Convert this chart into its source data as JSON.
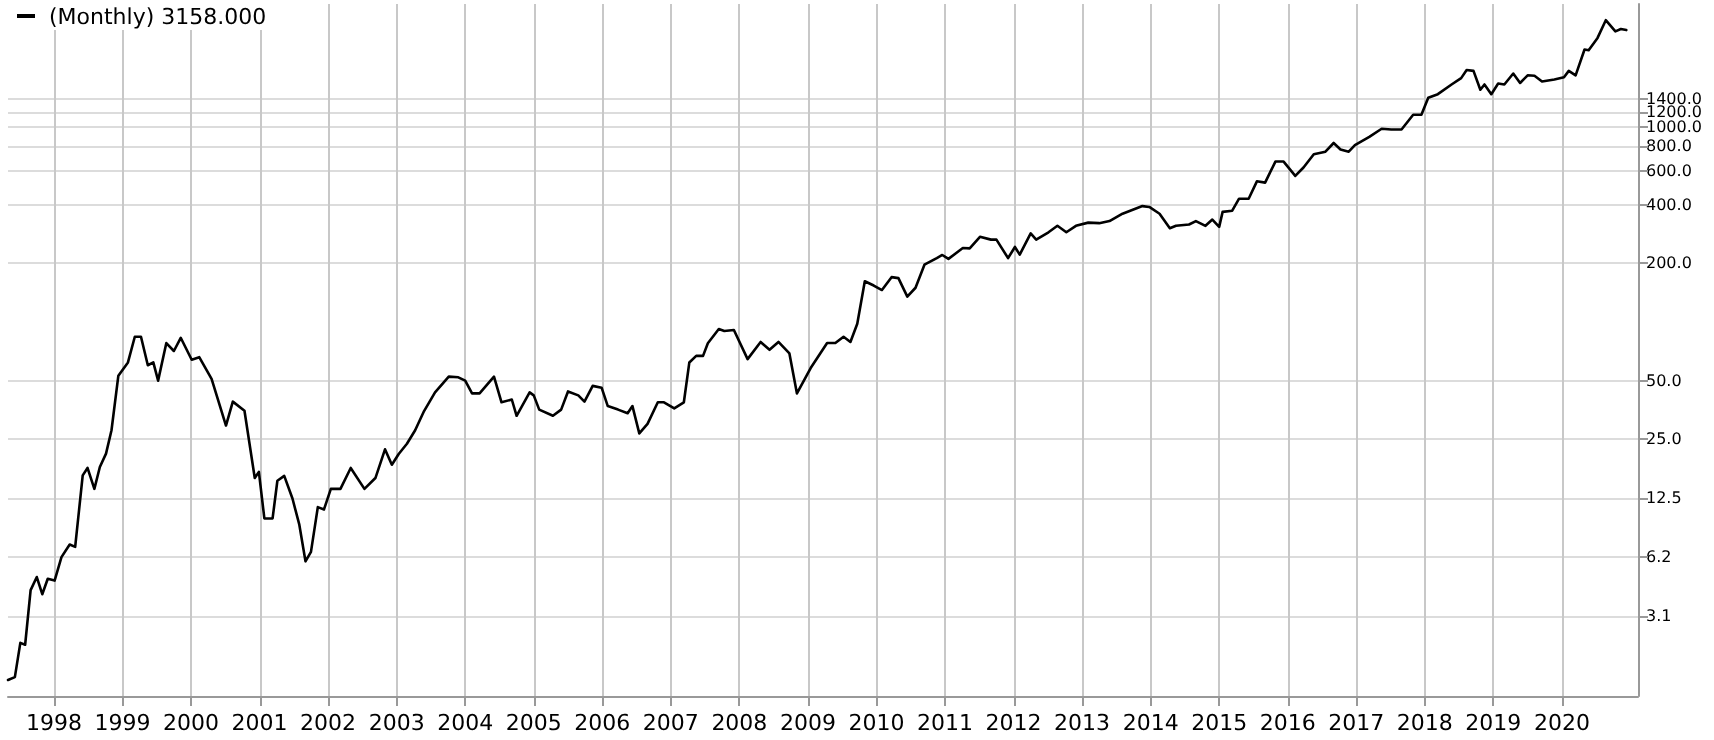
{
  "chart_data": {
    "type": "line",
    "annotations": [
      "(Monthly) 3158.000"
    ],
    "x": [
      1997.33,
      1997.43,
      1997.51,
      1997.58,
      1997.66,
      1997.75,
      1997.83,
      1997.91,
      1998.01,
      1998.11,
      1998.23,
      1998.31,
      1998.42,
      1998.49,
      1998.59,
      1998.67,
      1998.76,
      1998.84,
      1998.94,
      1999.08,
      1999.18,
      1999.27,
      1999.37,
      1999.45,
      1999.52,
      1999.64,
      1999.75,
      1999.85,
      2000.01,
      2000.12,
      2000.3,
      2000.51,
      2000.61,
      2000.78,
      2000.93,
      2000.99,
      2001.07,
      2001.19,
      2001.26,
      2001.36,
      2001.48,
      2001.58,
      2001.67,
      2001.75,
      2001.85,
      2001.94,
      2002.04,
      2002.18,
      2002.33,
      2002.53,
      2002.69,
      2002.83,
      2002.93,
      2003.03,
      2003.15,
      2003.27,
      2003.4,
      2003.56,
      2003.76,
      2003.9,
      2004.0,
      2004.1,
      2004.21,
      2004.42,
      2004.53,
      2004.68,
      2004.75,
      2004.94,
      2005.0,
      2005.08,
      2005.28,
      2005.4,
      2005.5,
      2005.65,
      2005.74,
      2005.86,
      2005.99,
      2006.08,
      2006.23,
      2006.37,
      2006.44,
      2006.54,
      2006.66,
      2006.81,
      2006.9,
      2007.05,
      2007.19,
      2007.27,
      2007.37,
      2007.47,
      2007.54,
      2007.7,
      2007.78,
      2007.92,
      2008.12,
      2008.31,
      2008.44,
      2008.57,
      2008.73,
      2008.84,
      2009.04,
      2009.28,
      2009.4,
      2009.52,
      2009.62,
      2009.72,
      2009.83,
      2009.96,
      2010.08,
      2010.22,
      2010.32,
      2010.45,
      2010.57,
      2010.7,
      2010.88,
      2010.96,
      2011.05,
      2011.26,
      2011.36,
      2011.51,
      2011.67,
      2011.75,
      2011.92,
      2012.02,
      2012.09,
      2012.25,
      2012.33,
      2012.51,
      2012.64,
      2012.77,
      2012.91,
      2013.09,
      2013.25,
      2013.4,
      2013.59,
      2013.88,
      2013.98,
      2014.13,
      2014.28,
      2014.37,
      2014.56,
      2014.66,
      2014.8,
      2014.9,
      2015.0,
      2015.05,
      2015.19,
      2015.29,
      2015.43,
      2015.55,
      2015.67,
      2015.82,
      2015.94,
      2016.11,
      2016.23,
      2016.38,
      2016.55,
      2016.67,
      2016.77,
      2016.89,
      2016.98,
      2017.19,
      2017.37,
      2017.51,
      2017.66,
      2017.83,
      2017.95,
      2018.05,
      2018.19,
      2018.39,
      2018.53,
      2018.61,
      2018.71,
      2018.81,
      2018.87,
      2018.97,
      2019.07,
      2019.16,
      2019.29,
      2019.39,
      2019.5,
      2019.6,
      2019.71,
      2019.89,
      2020.03,
      2020.1,
      2020.2,
      2020.33,
      2020.39,
      2020.52,
      2020.64,
      2020.78,
      2020.86,
      2020.94
    ],
    "series": [
      {
        "color": "#000000",
        "values": [
          1.45,
          1.5,
          2.25,
          2.2,
          4.2,
          4.9,
          4.0,
          4.8,
          4.7,
          6.2,
          7.2,
          7.0,
          16.3,
          17.8,
          13.9,
          18,
          21.1,
          27.8,
          53,
          62,
          84,
          84,
          60,
          62,
          50,
          78,
          71,
          83,
          64,
          66,
          51,
          29.4,
          39,
          35,
          15.8,
          17,
          9.8,
          9.8,
          15.3,
          16.2,
          12.4,
          9.1,
          5.9,
          6.6,
          11.2,
          10.9,
          13.9,
          13.9,
          17.8,
          13.9,
          15.8,
          22.2,
          18.5,
          21,
          23.7,
          27.8,
          34.9,
          43.5,
          52.4,
          52,
          50,
          43,
          43,
          52.4,
          38.7,
          40,
          33,
          43.5,
          42,
          35.5,
          33,
          35.5,
          44,
          42,
          39,
          47,
          46,
          37,
          35.5,
          34,
          37,
          26.8,
          30,
          38.7,
          38.7,
          36,
          38.7,
          62,
          67,
          67,
          77.8,
          92,
          90,
          91,
          64.5,
          79,
          72,
          79,
          69,
          43,
          58,
          78,
          78,
          84,
          79,
          98,
          162,
          154,
          146,
          170,
          168,
          135,
          150,
          197,
          213,
          221,
          211,
          240,
          239,
          274,
          265,
          265,
          213,
          243,
          222,
          285,
          265,
          289,
          312,
          289,
          312,
          324,
          322,
          330,
          360,
          394,
          390,
          360,
          303,
          312,
          317,
          330,
          312,
          336,
          308,
          368,
          373,
          430,
          430,
          528,
          520,
          667,
          667,
          563,
          622,
          728,
          750,
          831,
          770,
          750,
          810,
          893,
          983,
          975,
          975,
          1160,
          1160,
          1420,
          1480,
          1660,
          1790,
          1970,
          1950,
          1560,
          1660,
          1480,
          1680,
          1660,
          1890,
          1690,
          1850,
          1840,
          1720,
          1760,
          1810,
          1950,
          1850,
          2510,
          2490,
          2880,
          3550,
          3110,
          3200,
          3158
        ]
      }
    ],
    "xlim": [
      1997.33,
      2021.11
    ],
    "xticks": [
      1998,
      1999,
      2000,
      2001,
      2002,
      2003,
      2004,
      2005,
      2006,
      2007,
      2008,
      2009,
      2010,
      2011,
      2012,
      2013,
      2014,
      2015,
      2016,
      2017,
      2018,
      2019,
      2020
    ],
    "ylim": [
      1.2,
      4300
    ],
    "yticks": [
      3.1,
      6.2,
      12.5,
      {
        "value": 25,
        "label": "25.0"
      },
      {
        "value": 50,
        "label": "50.0"
      },
      {
        "value": 200,
        "label": "200.0"
      },
      {
        "value": 400,
        "label": "400.0"
      },
      {
        "value": 600,
        "label": "600.0"
      },
      {
        "value": 800,
        "label": "800.0"
      },
      {
        "value": 1000,
        "label": "1000.0"
      },
      {
        "value": 1200,
        "label": "1200.0"
      },
      {
        "value": 1400,
        "label": "1400.0"
      }
    ],
    "log": true,
    "grid": true,
    "marker": "none",
    "line_style": "solid"
  }
}
